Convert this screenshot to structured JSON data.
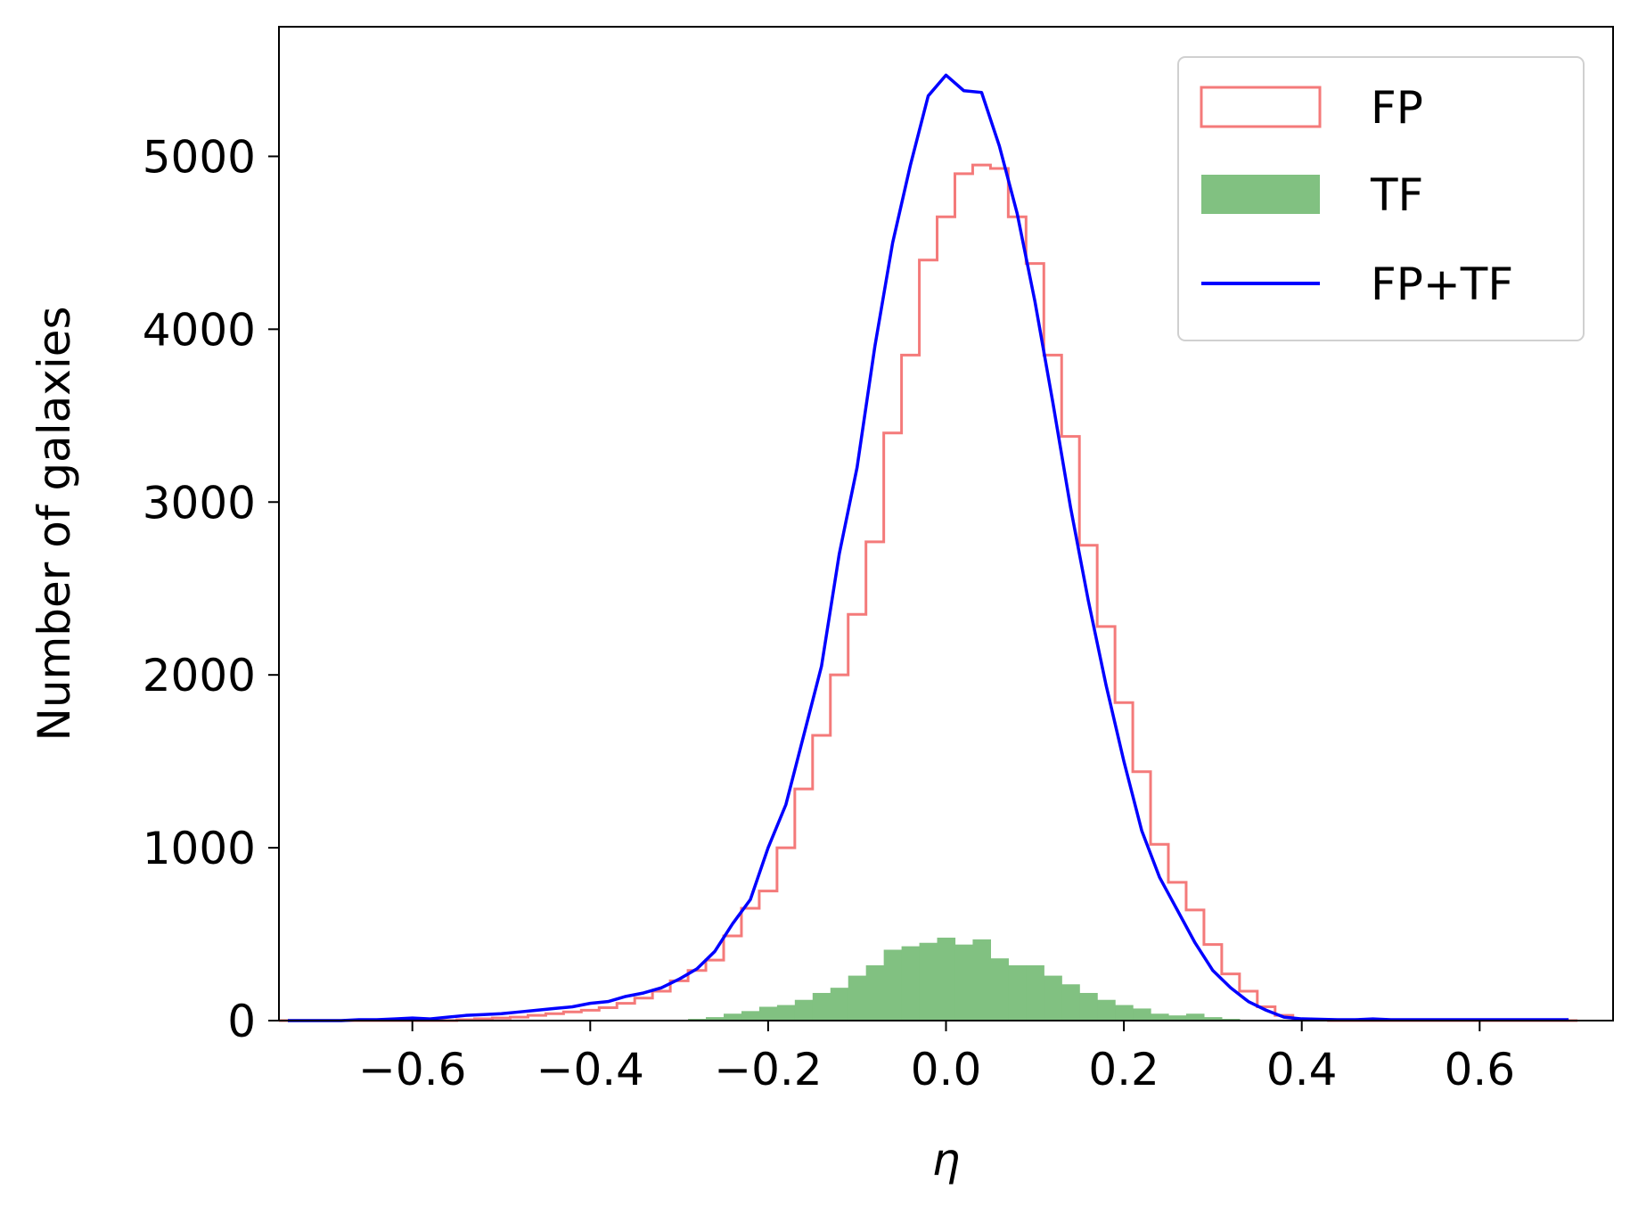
{
  "chart_data": {
    "type": "histogram",
    "title": "",
    "xlabel": "η",
    "ylabel": "Number of galaxies",
    "xlim": [
      -0.75,
      0.75
    ],
    "ylim": [
      0,
      5750
    ],
    "xticks": [
      -0.6,
      -0.4,
      -0.2,
      0.0,
      0.2,
      0.4,
      0.6
    ],
    "xtick_labels": [
      "−0.6",
      "−0.4",
      "−0.2",
      "0.0",
      "0.2",
      "0.4",
      "0.6"
    ],
    "yticks": [
      0,
      1000,
      2000,
      3000,
      4000,
      5000
    ],
    "ytick_labels": [
      "0",
      "1000",
      "2000",
      "3000",
      "4000",
      "5000"
    ],
    "grid": false,
    "legend_position": "top-right",
    "bins": [
      -0.75,
      -0.73,
      -0.71,
      -0.69,
      -0.67,
      -0.65,
      -0.63,
      -0.61,
      -0.59,
      -0.57,
      -0.55,
      -0.53,
      -0.51,
      -0.49,
      -0.47,
      -0.45,
      -0.43,
      -0.41,
      -0.39,
      -0.37,
      -0.35,
      -0.33,
      -0.31,
      -0.29,
      -0.27,
      -0.25,
      -0.23,
      -0.21,
      -0.19,
      -0.17,
      -0.15,
      -0.13,
      -0.11,
      -0.09,
      -0.07,
      -0.05,
      -0.03,
      -0.01,
      0.01,
      0.03,
      0.05,
      0.07,
      0.09,
      0.11,
      0.13,
      0.15,
      0.17,
      0.19,
      0.21,
      0.23,
      0.25,
      0.27,
      0.29,
      0.31,
      0.33,
      0.35,
      0.37,
      0.39,
      0.41,
      0.43,
      0.45,
      0.47,
      0.49,
      0.51,
      0.53,
      0.55,
      0.57,
      0.59,
      0.61,
      0.63,
      0.65,
      0.67,
      0.69,
      0.71
    ],
    "series": [
      {
        "name": "FP",
        "kind": "step-histogram",
        "color": "#f47a7a",
        "values": [
          0,
          0,
          0,
          0,
          0,
          0,
          0,
          0,
          0,
          0,
          5,
          10,
          15,
          20,
          30,
          40,
          50,
          60,
          75,
          100,
          130,
          170,
          230,
          290,
          350,
          490,
          650,
          750,
          1000,
          1340,
          1650,
          2000,
          2350,
          2770,
          3400,
          3850,
          4400,
          4650,
          4900,
          4950,
          4930,
          4650,
          4380,
          3850,
          3380,
          2750,
          2280,
          1840,
          1440,
          1020,
          800,
          640,
          440,
          270,
          170,
          80,
          30,
          10,
          5,
          0,
          0,
          0,
          0,
          0,
          0,
          0,
          0,
          0,
          0,
          0,
          0,
          0,
          0
        ]
      },
      {
        "name": "TF",
        "kind": "filled-histogram",
        "color": "#81c181",
        "values": [
          0,
          0,
          0,
          0,
          0,
          0,
          0,
          0,
          0,
          0,
          0,
          0,
          0,
          0,
          0,
          0,
          0,
          0,
          0,
          0,
          0,
          3,
          5,
          10,
          20,
          40,
          55,
          80,
          90,
          120,
          160,
          190,
          260,
          320,
          410,
          430,
          450,
          480,
          440,
          470,
          360,
          320,
          320,
          260,
          210,
          160,
          120,
          90,
          70,
          40,
          30,
          40,
          20,
          10,
          5,
          0,
          0,
          0,
          0,
          0,
          0,
          0,
          0,
          0,
          0,
          0,
          0,
          0,
          0,
          0,
          0,
          0,
          0
        ]
      },
      {
        "name": "FP+TF",
        "kind": "line",
        "color": "#0000ff",
        "x": [
          -0.74,
          -0.72,
          -0.7,
          -0.68,
          -0.66,
          -0.64,
          -0.62,
          -0.6,
          -0.58,
          -0.56,
          -0.54,
          -0.52,
          -0.5,
          -0.48,
          -0.46,
          -0.44,
          -0.42,
          -0.4,
          -0.38,
          -0.36,
          -0.34,
          -0.32,
          -0.3,
          -0.28,
          -0.26,
          -0.24,
          -0.22,
          -0.2,
          -0.18,
          -0.16,
          -0.14,
          -0.12,
          -0.1,
          -0.08,
          -0.06,
          -0.04,
          -0.02,
          0.0,
          0.02,
          0.04,
          0.06,
          0.08,
          0.1,
          0.12,
          0.14,
          0.16,
          0.18,
          0.2,
          0.22,
          0.24,
          0.26,
          0.28,
          0.3,
          0.32,
          0.34,
          0.36,
          0.38,
          0.4,
          0.42,
          0.44,
          0.46,
          0.48,
          0.5,
          0.52,
          0.54,
          0.56,
          0.58,
          0.6,
          0.62,
          0.64,
          0.66,
          0.68,
          0.7
        ],
        "y": [
          0,
          0,
          0,
          0,
          5,
          5,
          10,
          15,
          10,
          20,
          30,
          35,
          40,
          50,
          60,
          70,
          80,
          100,
          110,
          140,
          160,
          190,
          240,
          300,
          400,
          560,
          700,
          1000,
          1250,
          1650,
          2050,
          2700,
          3200,
          3900,
          4500,
          4950,
          5350,
          5470,
          5380,
          5370,
          5060,
          4670,
          4160,
          3580,
          2970,
          2430,
          1940,
          1500,
          1100,
          830,
          640,
          450,
          290,
          190,
          110,
          60,
          20,
          10,
          8,
          5,
          5,
          10,
          5,
          5,
          5,
          5,
          5,
          5,
          5,
          5,
          5,
          5,
          5
        ]
      }
    ]
  }
}
